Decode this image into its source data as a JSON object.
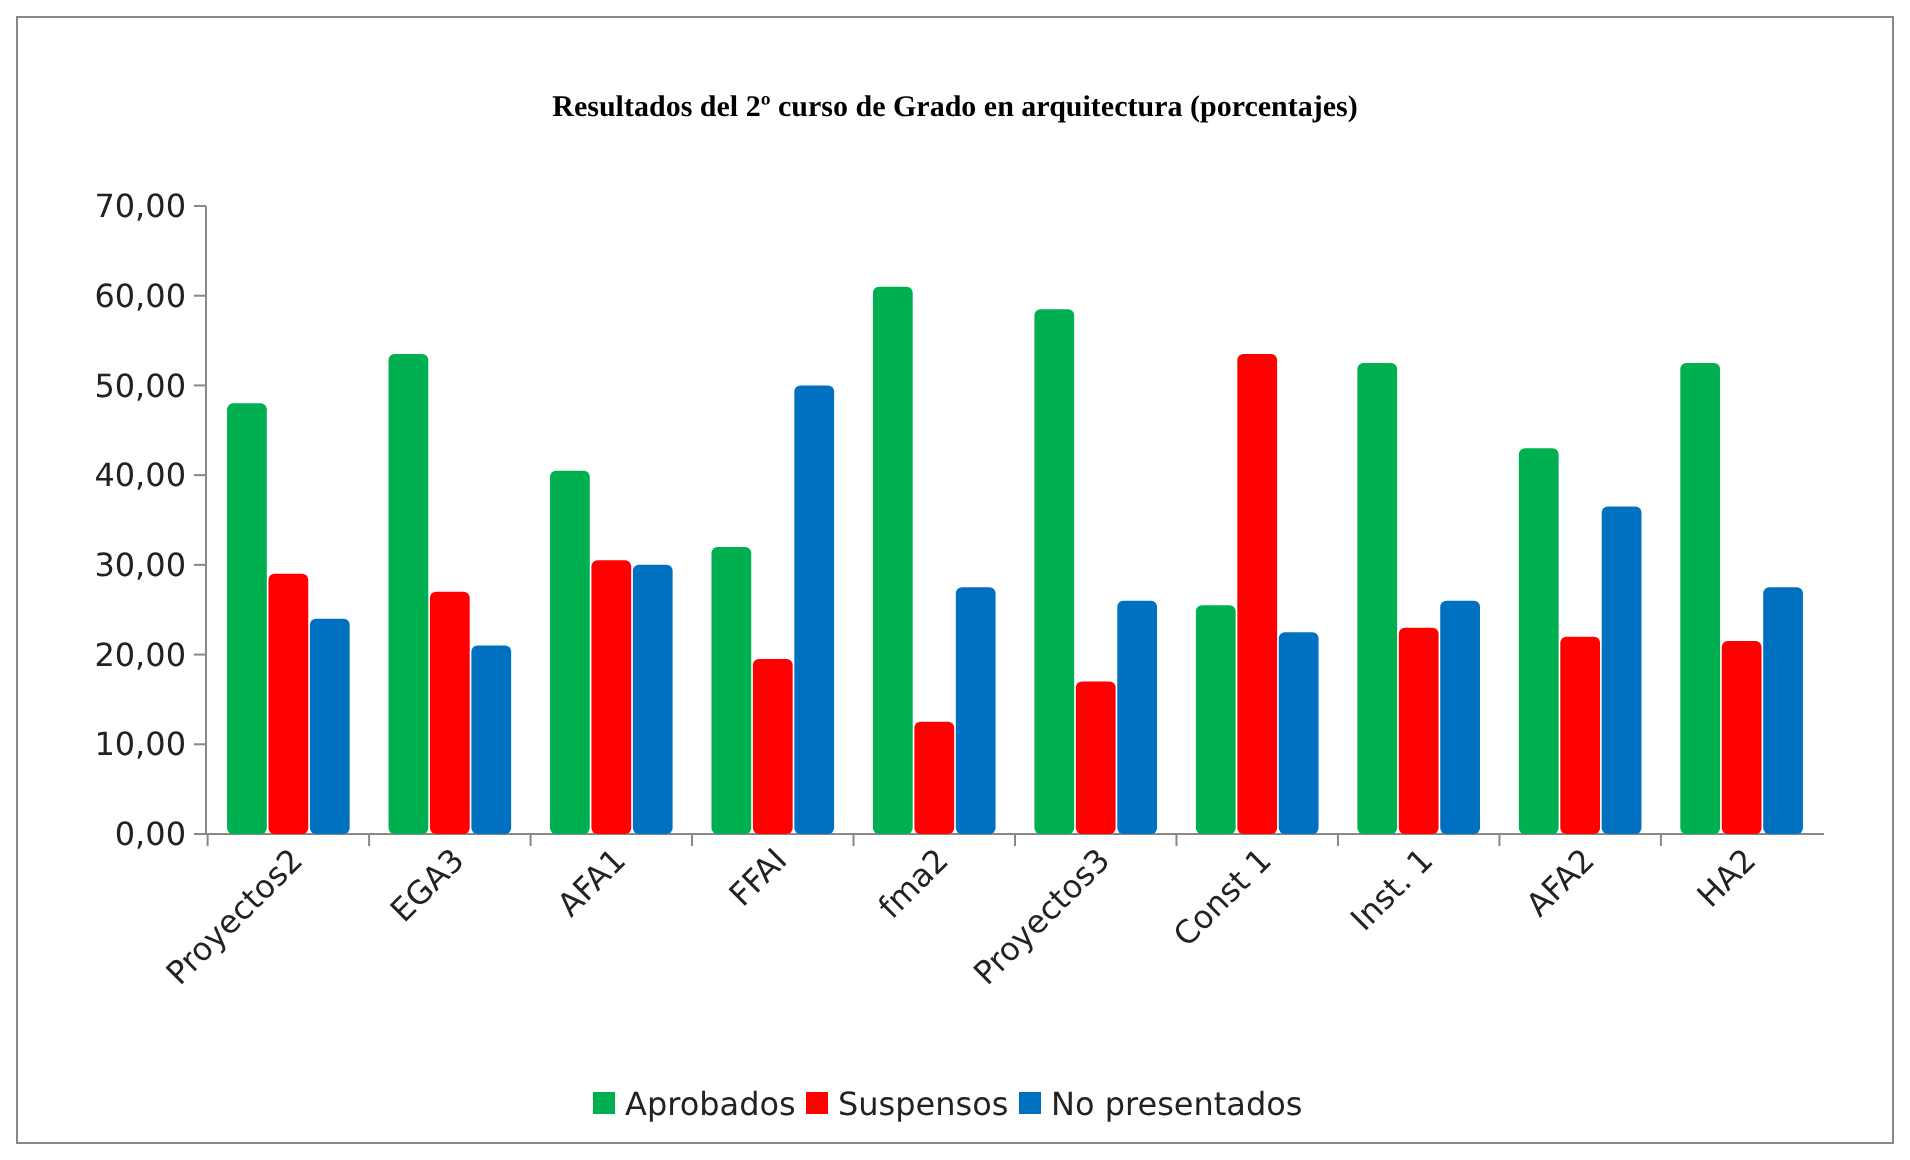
{
  "chart_data": {
    "type": "bar",
    "title": "Resultados del 2º curso de Grado en arquitectura (porcentajes)",
    "categories": [
      "Proyectos2",
      "EGA3",
      "AFA1",
      "FFAI",
      "fma2",
      "Proyectos3",
      "Const 1",
      "Inst. 1",
      "AFA2",
      "HA2"
    ],
    "series": [
      {
        "name": "Aprobados",
        "color": "#00b050",
        "values": [
          48,
          53.5,
          40.5,
          32,
          61,
          58.5,
          25.5,
          52.5,
          43,
          52.5
        ]
      },
      {
        "name": "Suspensos",
        "color": "#ff0000",
        "values": [
          29,
          27,
          30.5,
          19.5,
          12.5,
          17,
          53.5,
          23,
          22,
          21.5
        ]
      },
      {
        "name": "No presentados",
        "color": "#0070c0",
        "values": [
          24,
          21,
          30,
          50,
          27.5,
          26,
          22.5,
          26,
          36.5,
          27.5
        ]
      }
    ],
    "ylim": [
      0,
      70
    ],
    "yticks": [
      {
        "value": 0,
        "label": "0,00"
      },
      {
        "value": 10,
        "label": "10,00"
      },
      {
        "value": 20,
        "label": "20,00"
      },
      {
        "value": 30,
        "label": "30,00"
      },
      {
        "value": 40,
        "label": "40,00"
      },
      {
        "value": 50,
        "label": "50,00"
      },
      {
        "value": 60,
        "label": "60,00"
      },
      {
        "value": 70,
        "label": "70,00"
      }
    ],
    "grid": false,
    "legend": "bottom"
  }
}
